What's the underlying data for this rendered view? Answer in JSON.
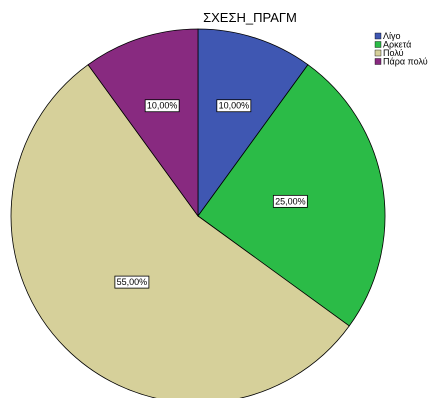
{
  "chart_data": {
    "type": "pie",
    "title": "ΣΧΕΣΗ_ΠΡΑΓΜ",
    "categories": [
      "Λίγο",
      "Αρκετά",
      "Πολύ",
      "Πάρα πολύ"
    ],
    "values": [
      10,
      25,
      55,
      10
    ],
    "labels": [
      "10,00%",
      "25,00%",
      "55,00%",
      "10,00%"
    ],
    "colors": [
      "#3f57b2",
      "#2bbb47",
      "#d6d09a",
      "#882a80"
    ],
    "start": "12 o'clock",
    "direction": "clockwise",
    "legend": {
      "position": "top-right",
      "entries": [
        "Λίγο",
        "Αρκετά",
        "Πολύ",
        "Πάρα πολύ"
      ]
    }
  }
}
